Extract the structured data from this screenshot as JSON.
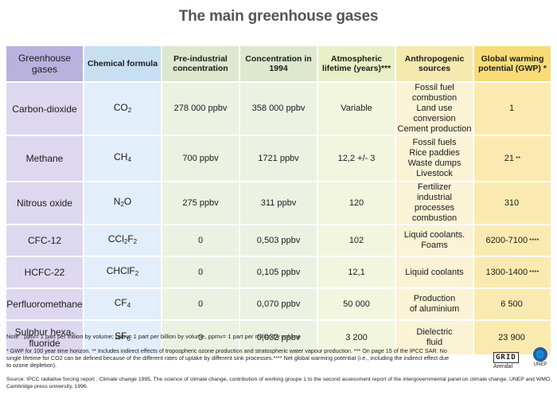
{
  "title": "The main greenhouse gases",
  "headers": [
    "Greenhouse gases",
    "Chemical formula",
    "Pre-industrial concentration",
    "Concentration in 1994",
    "Atmospheric lifetime (years)***",
    "Anthropogenic sources",
    "Global warming potential (GWP) *"
  ],
  "rows": [
    {
      "gas": "Carbon-dioxide",
      "formula_base": "CO",
      "formula_sub": "2",
      "formula_mid": "",
      "formula_sub2": "",
      "pre": "278 000 ppbv",
      "c1994": "358 000 ppbv",
      "life": "Variable",
      "sources": [
        "Fossil fuel combustion",
        "Land use conversion",
        "Cement production"
      ],
      "gwp": "1",
      "gwp_mark": ""
    },
    {
      "gas": "Methane",
      "formula_base": "CH",
      "formula_sub": "4",
      "formula_mid": "",
      "formula_sub2": "",
      "pre": "700 ppbv",
      "c1994": "1721 ppbv",
      "life": "12,2 +/- 3",
      "sources": [
        "Fossil fuels",
        "Rice paddies",
        "Waste dumps",
        "Livestock"
      ],
      "gwp": "21",
      "gwp_mark": "**"
    },
    {
      "gas": "Nitrous oxide",
      "formula_base": "N",
      "formula_sub": "2",
      "formula_mid": "O",
      "formula_sub2": "",
      "pre": "275 ppbv",
      "c1994": "311 ppbv",
      "life": "120",
      "sources": [
        "Fertilizer",
        "industrial processes",
        "combustion"
      ],
      "gwp": "310",
      "gwp_mark": ""
    },
    {
      "gas": "CFC-12",
      "formula_base": "CCl",
      "formula_sub": "2",
      "formula_mid": "F",
      "formula_sub2": "2",
      "pre": "0",
      "c1994": "0,503 ppbv",
      "life": "102",
      "sources": [
        "Liquid coolants.",
        "Foams"
      ],
      "gwp": "6200-7100",
      "gwp_mark": "****"
    },
    {
      "gas": "HCFC-22",
      "formula_base": "CHClF",
      "formula_sub": "2",
      "formula_mid": "",
      "formula_sub2": "",
      "pre": "0",
      "c1994": "0,105 ppbv",
      "life": "12,1",
      "sources": [
        "Liquid coolants"
      ],
      "gwp": "1300-1400",
      "gwp_mark": "****"
    },
    {
      "gas": "Perfluoromethane",
      "formula_base": "CF",
      "formula_sub": "4",
      "formula_mid": "",
      "formula_sub2": "",
      "pre": "0",
      "c1994": "0,070 ppbv",
      "life": "50 000",
      "sources": [
        "Production",
        "of aluminium"
      ],
      "gwp": "6 500",
      "gwp_mark": ""
    },
    {
      "gas": "Sulphur hexa-fluoride",
      "formula_base": "SF",
      "formula_sub": "6",
      "formula_mid": "",
      "formula_sub2": "",
      "pre": "0",
      "c1994": "0,032 ppbv",
      "life": "3 200",
      "sources": [
        "Dielectric",
        "fluid"
      ],
      "gwp": "23 900",
      "gwp_mark": ""
    }
  ],
  "note_units": "Note : pptv= 1 part per trillion by volume; ppbv= 1 part per billion by volume, ppmv= 1 part per million by volume",
  "note_footnotes": "* GWP for 100 year time horizon. ** Includes indirect effects of tropospheric ozone production and stratospheric water vapour production. *** On page 15 of the IPCC SAR. No single lifetime for CO2 can be defined because of the different rates of uptake by different sink processes.**** Net global warming potential (i.e., including the indirect effect due to ozone depletion).",
  "source": "Source: IPCC radiative forcing report ; Climate change 1995, The science of climate change, contribution of working groupe 1 to the second assessment report of the intergovernmental panel on climate change, UNEP and WMO, Cambridge press university,  1996.",
  "logo_grid": "GRID",
  "logo_arendal": "Arendal",
  "logo_unep": "UNEP",
  "colors": {
    "gas_col": "#ddd8f0",
    "formula_col": "#e2eef9",
    "conc_col": "#ebf2e2",
    "life_col": "#f3f6df",
    "sources_col": "#faf3d6",
    "gwp_col": "#fbeab0"
  }
}
